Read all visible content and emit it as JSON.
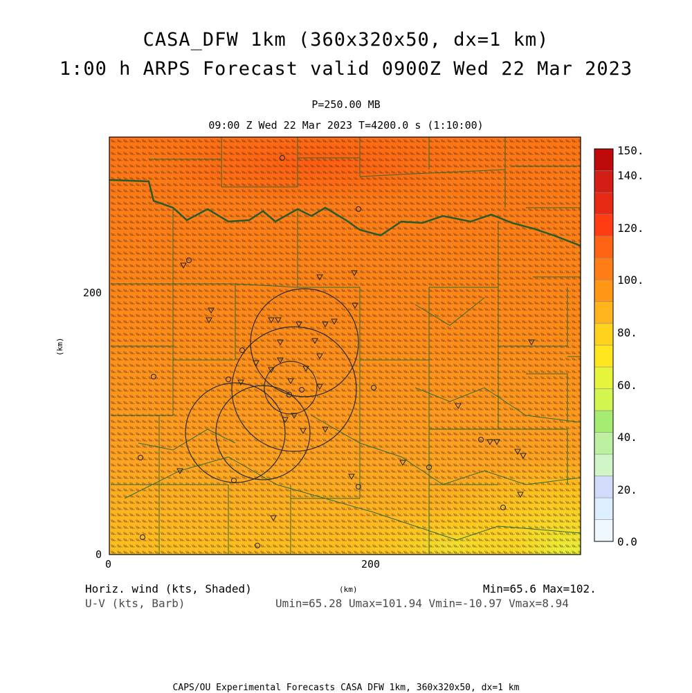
{
  "titles": {
    "line1": "CASA_DFW 1km (360x320x50, dx=1 km)",
    "line2": "1:00 h ARPS Forecast valid 0900Z Wed 22 Mar 2023",
    "level": "P=250.00 MB",
    "time": "09:00 Z Wed 22 Mar 2023   T=4200.0 s (1:10:00)"
  },
  "axes": {
    "x_ticks": [
      "0",
      "200"
    ],
    "y_ticks": [
      "200",
      "0"
    ],
    "x_label": "(km)",
    "y_label": "(km)"
  },
  "colorbar": {
    "labels": [
      "150.",
      "140.",
      "120.",
      "100.",
      "80.",
      "60.",
      "40.",
      "20.",
      "0.0"
    ],
    "colors": [
      "#f0f8ff",
      "#dceeff",
      "#d2dcfa",
      "#d2f5c8",
      "#bdf0a0",
      "#a6ec72",
      "#d2f550",
      "#e6f53c",
      "#ffe61e",
      "#ffd21e",
      "#ffb41e",
      "#ff9614",
      "#ff7d14",
      "#ff6414",
      "#ff3c14",
      "#e62814",
      "#d21e14",
      "#be0a0a"
    ]
  },
  "footer": {
    "left1": "Horiz. wind (kts, Shaded)",
    "left2": "U-V (kts, Barb)",
    "center": "(km)",
    "right1": "Min=65.6  Max=102.",
    "right2": "Umin=65.28 Umax=101.94 Vmin=-10.97 Vmax=8.94",
    "bottom": "CAPS/OU Experimental Forecasts  CASA DFW 1km, 360x320x50, dx=1 km"
  }
}
